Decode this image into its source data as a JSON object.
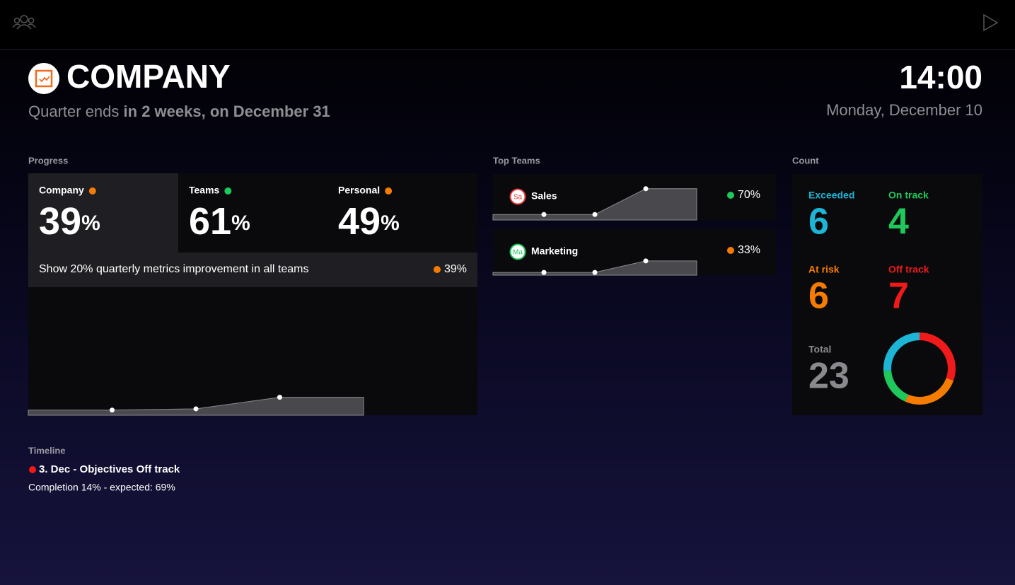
{
  "header": {
    "title": "COMPANY",
    "subtitle_prefix": "Quarter ends",
    "subtitle_emphasis": "in 2 weeks, on December 31",
    "time": "14:00",
    "date": "Monday, December 10"
  },
  "progress": {
    "label": "Progress",
    "cards": [
      {
        "name": "Company",
        "value": "39",
        "unit": "%",
        "color": "#f57c00"
      },
      {
        "name": "Teams",
        "value": "61",
        "unit": "%",
        "color": "#1ec85a"
      },
      {
        "name": "Personal",
        "value": "49",
        "unit": "%",
        "color": "#f57c00"
      }
    ],
    "objective": {
      "text": "Show 20% quarterly metrics improvement in all teams",
      "value": "39%",
      "color": "#f57c00"
    },
    "chart": {
      "values": [
        4,
        5,
        14
      ],
      "ylim": [
        0,
        100
      ]
    }
  },
  "top_teams": {
    "label": "Top Teams",
    "ylim": [
      0,
      100
    ],
    "teams": [
      {
        "initials": "Sa",
        "name": "Sales",
        "value": "70%",
        "color": "#1ec85a",
        "icon_color": "#e53935",
        "trend": [
          12,
          12,
          68
        ]
      },
      {
        "initials": "Ma",
        "name": "Marketing",
        "value": "33%",
        "color": "#f57c00",
        "icon_color": "#1ec85a",
        "trend": [
          6,
          6,
          31
        ]
      }
    ]
  },
  "count": {
    "label": "Count",
    "items": [
      {
        "label": "Exceeded",
        "value": 6,
        "color": "#1cb5d5"
      },
      {
        "label": "On track",
        "value": 4,
        "color": "#1ec85a"
      },
      {
        "label": "At risk",
        "value": 6,
        "color": "#f57c00"
      },
      {
        "label": "Off track",
        "value": 7,
        "color": "#f01a1a"
      }
    ],
    "total_label": "Total",
    "total": 23
  },
  "timeline": {
    "label": "Timeline",
    "entries": [
      {
        "color": "#f01a1a",
        "title": "3. Dec - Objectives Off track",
        "detail": "Completion 14% - expected: 69%"
      }
    ]
  }
}
